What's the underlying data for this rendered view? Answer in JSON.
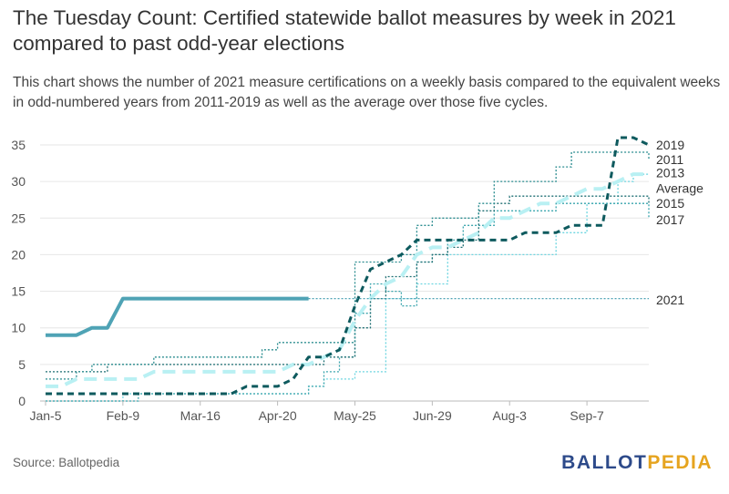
{
  "header": {
    "title": "The Tuesday Count: Certified statewide ballot measures by week in 2021 compared to past odd-year elections",
    "subtitle": "This chart shows the number of 2021 measure certifications on a weekly basis compared to the equivalent weeks in odd-numbered years from 2011-2019 as well as the average over those five cycles."
  },
  "footer": {
    "source": "Source: Ballotpedia",
    "logo_part1": "BALLOT",
    "logo_part2": "PEDIA"
  },
  "chart_data": {
    "type": "line",
    "title": "The Tuesday Count: Certified statewide ballot measures by week in 2021 compared to past odd-year elections",
    "xlabel": "",
    "ylabel": "",
    "ylim": [
      0,
      35
    ],
    "yticks": [
      0,
      5,
      10,
      15,
      20,
      25,
      30,
      35
    ],
    "x_tick_labels": [
      "Jan-5",
      "Feb-9",
      "Mar-16",
      "Apr-20",
      "May-25",
      "Jun-29",
      "Aug-3",
      "Sep-7"
    ],
    "x_tick_weeks": [
      0,
      5,
      10,
      15,
      20,
      25,
      30,
      35
    ],
    "week_count": 39,
    "series": [
      {
        "name": "2021",
        "color": "#4fa3b5",
        "style": "solid",
        "values": [
          9,
          9,
          9,
          10,
          10,
          14,
          14,
          14,
          14,
          14,
          14,
          14,
          14,
          14,
          14,
          14,
          14,
          14,
          14,
          14,
          14,
          14,
          14,
          14,
          14,
          14,
          14,
          14,
          14,
          14,
          14,
          14,
          14,
          14,
          14,
          14,
          14,
          14,
          14,
          14
        ],
        "actual_until_week": 17
      },
      {
        "name": "2019",
        "color": "#0e5a5e",
        "style": "dashed-bold",
        "values": [
          1,
          1,
          1,
          1,
          1,
          1,
          1,
          1,
          1,
          1,
          1,
          1,
          1,
          2,
          2,
          2,
          3,
          6,
          6,
          7,
          13,
          18,
          19,
          20,
          22,
          22,
          22,
          22,
          22,
          22,
          22,
          23,
          23,
          23,
          24,
          24,
          24,
          36,
          36,
          35
        ]
      },
      {
        "name": "2011",
        "color": "#2a8c8f",
        "style": "dotted",
        "values": [
          3,
          3,
          4,
          5,
          5,
          5,
          5,
          6,
          6,
          6,
          6,
          6,
          6,
          6,
          7,
          8,
          8,
          8,
          8,
          8,
          19,
          19,
          19,
          20,
          24,
          25,
          25,
          25,
          27,
          30,
          30,
          30,
          30,
          32,
          34,
          34,
          34,
          34,
          34,
          33
        ]
      },
      {
        "name": "2013",
        "color": "#6dd5e0",
        "style": "dotted",
        "values": [
          0,
          0,
          0,
          0,
          0,
          1,
          1,
          1,
          1,
          1,
          1,
          1,
          1,
          1,
          1,
          1,
          1,
          2,
          3,
          3,
          4,
          4,
          14,
          14,
          16,
          16,
          20,
          20,
          20,
          20,
          20,
          20,
          20,
          23,
          23,
          27,
          27,
          30,
          31,
          31
        ]
      },
      {
        "name": "Average",
        "color": "#b9f0f3",
        "style": "dashed-bold",
        "values": [
          2,
          2,
          3,
          3,
          3,
          3,
          3,
          4,
          4,
          4,
          4,
          4,
          4,
          4,
          4,
          4,
          5,
          5,
          6,
          7,
          11,
          14,
          16,
          17,
          20,
          21,
          21,
          22,
          23,
          25,
          25,
          26,
          27,
          27,
          28,
          29,
          29,
          30,
          31,
          31
        ]
      },
      {
        "name": "2015",
        "color": "#1e6f73",
        "style": "dotted",
        "values": [
          4,
          4,
          4,
          4,
          5,
          5,
          5,
          5,
          5,
          5,
          5,
          5,
          5,
          5,
          5,
          5,
          5,
          5,
          6,
          6,
          10,
          14,
          17,
          17,
          19,
          20,
          21,
          22,
          26,
          27,
          28,
          28,
          28,
          28,
          28,
          28,
          28,
          28,
          28,
          27
        ]
      },
      {
        "name": "2017",
        "color": "#3aa5ad",
        "style": "dotted",
        "values": [
          0,
          0,
          0,
          0,
          0,
          0,
          1,
          1,
          1,
          1,
          1,
          1,
          1,
          1,
          1,
          1,
          1,
          2,
          4,
          6,
          12,
          16,
          15,
          13,
          19,
          20,
          22,
          24,
          24,
          26,
          26,
          26,
          26,
          27,
          27,
          27,
          27,
          27,
          27,
          25
        ]
      }
    ],
    "end_labels": [
      {
        "series": "2019",
        "text": "2019",
        "y": 35
      },
      {
        "series": "2011",
        "text": "2011",
        "y": 33
      },
      {
        "series": "2013",
        "text": "2013",
        "y": 31.2
      },
      {
        "series": "Average",
        "text": "Average",
        "y": 29.1
      },
      {
        "series": "2015",
        "text": "2015",
        "y": 27
      },
      {
        "series": "2017",
        "text": "2017",
        "y": 24.8
      },
      {
        "series": "2021",
        "text": "2021",
        "y": 13.8
      }
    ]
  }
}
